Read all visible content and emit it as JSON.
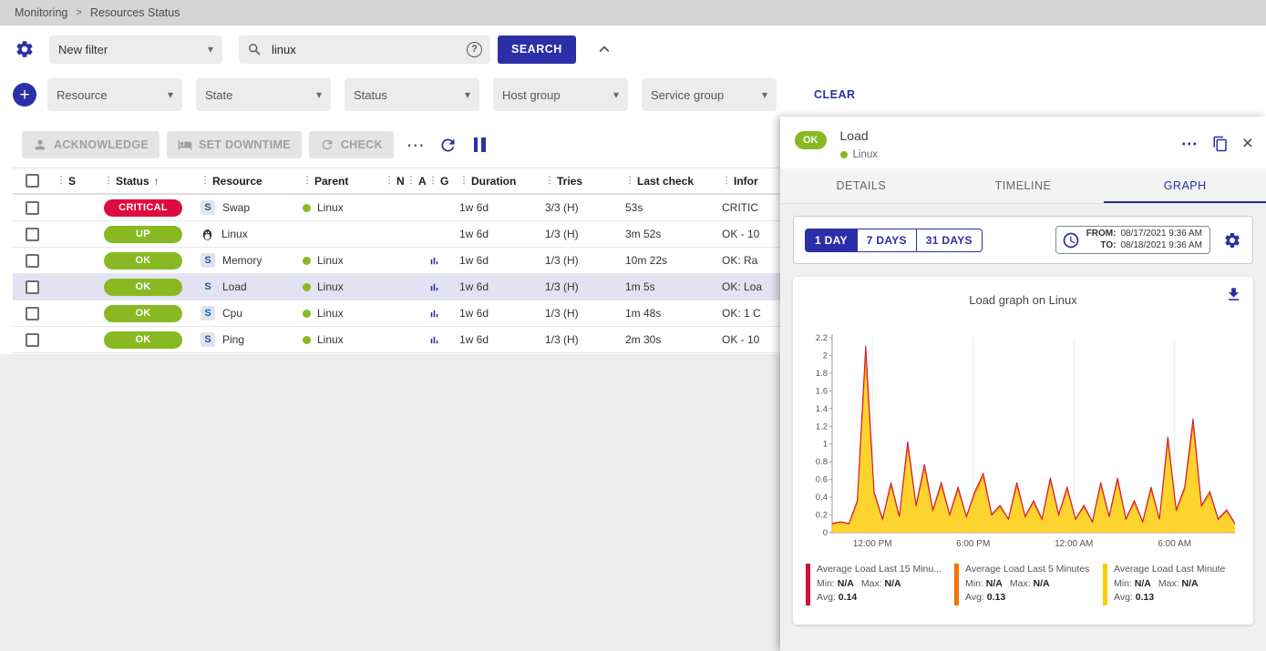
{
  "colors": {
    "primary": "#2a2fa8",
    "critical": "#e00b3d",
    "success": "#88b922",
    "selected_row": "#e2e2f2"
  },
  "icons": {
    "breadcrumb_separator": ">",
    "drag": "⋮",
    "sort_asc": "↑",
    "caret_down": "▾",
    "more_horizontal": "⋯",
    "close": "×",
    "help": "?",
    "plus": "+"
  },
  "breadcrumb": {
    "items": [
      "Monitoring",
      "Resources Status"
    ]
  },
  "filters": {
    "saved_filter": {
      "value": "New filter"
    },
    "search": {
      "value": "linux"
    },
    "search_button_label": "SEARCH",
    "criteria_selects": [
      "Resource",
      "State",
      "Status",
      "Host group",
      "Service group"
    ],
    "clear_label": "CLEAR"
  },
  "toolbar": {
    "acknowledge_label": "ACKNOWLEDGE",
    "set_downtime_label": "SET DOWNTIME",
    "check_label": "CHECK"
  },
  "table": {
    "headers": [
      "S",
      "Status",
      "Resource",
      "Parent",
      "N",
      "A",
      "G",
      "Duration",
      "Tries",
      "Last check",
      "Infor"
    ],
    "sorted_by": "Status",
    "rows": [
      {
        "severity": "critical",
        "status": "CRITICAL",
        "resource_icon": "S",
        "resource": "Swap",
        "parent": "Linux",
        "has_graph": false,
        "duration": "1w 6d",
        "tries": "3/3 (H)",
        "last_check": "53s",
        "info": "CRITIC",
        "selected": false
      },
      {
        "severity": "up",
        "status": "UP",
        "resource_icon": "penguin",
        "resource": "Linux",
        "parent": "",
        "has_graph": false,
        "duration": "1w 6d",
        "tries": "1/3 (H)",
        "last_check": "3m 52s",
        "info": "OK - 10",
        "selected": false
      },
      {
        "severity": "ok",
        "status": "OK",
        "resource_icon": "S",
        "resource": "Memory",
        "parent": "Linux",
        "has_graph": true,
        "duration": "1w 6d",
        "tries": "1/3 (H)",
        "last_check": "10m 22s",
        "info": "OK: Ra",
        "selected": false
      },
      {
        "severity": "ok",
        "status": "OK",
        "resource_icon": "S",
        "resource": "Load",
        "parent": "Linux",
        "has_graph": true,
        "duration": "1w 6d",
        "tries": "1/3 (H)",
        "last_check": "1m 5s",
        "info": "OK: Loa",
        "selected": true
      },
      {
        "severity": "ok",
        "status": "OK",
        "resource_icon": "S",
        "resource": "Cpu",
        "parent": "Linux",
        "has_graph": true,
        "duration": "1w 6d",
        "tries": "1/3 (H)",
        "last_check": "1m 48s",
        "info": "OK: 1 C",
        "selected": false
      },
      {
        "severity": "ok",
        "status": "OK",
        "resource_icon": "S",
        "resource": "Ping",
        "parent": "Linux",
        "has_graph": true,
        "duration": "1w 6d",
        "tries": "1/3 (H)",
        "last_check": "2m 30s",
        "info": "OK - 10",
        "selected": false
      }
    ]
  },
  "panel": {
    "status": "OK",
    "title": "Load",
    "subtitle": "Linux",
    "tabs": [
      "DETAILS",
      "TIMELINE",
      "GRAPH"
    ],
    "active_tab": "GRAPH",
    "ranges": [
      "1 DAY",
      "7 DAYS",
      "31 DAYS"
    ],
    "active_range": "1 DAY",
    "from_label": "FROM:",
    "from_value": "08/17/2021 9:36 AM",
    "to_label": "TO:",
    "to_value": "08/18/2021 9:36 AM",
    "graph_title": "Load graph on Linux",
    "legend_labels": {
      "min": "Min:",
      "max": "Max:",
      "avg": "Avg:"
    },
    "legend": [
      {
        "name": "Average Load Last 15 Minu...",
        "color": "#d0103a",
        "min": "N/A",
        "max": "N/A",
        "avg": "0.14"
      },
      {
        "name": "Average Load Last 5 Minutes",
        "color": "#f07300",
        "min": "N/A",
        "max": "N/A",
        "avg": "0.13"
      },
      {
        "name": "Average Load Last Minute",
        "color": "#fdcd0b",
        "min": "N/A",
        "max": "N/A",
        "avg": "0.13"
      }
    ]
  },
  "chart_data": {
    "type": "area",
    "title": "Load graph on Linux",
    "x_unit": "hours_from_start",
    "x_step_hours": 0.5,
    "x_range_hours": [
      0,
      24
    ],
    "x_ticks": [
      {
        "pos": 2.4,
        "label": "12:00 PM"
      },
      {
        "pos": 8.4,
        "label": "6:00 PM"
      },
      {
        "pos": 14.4,
        "label": "12:00 AM"
      },
      {
        "pos": 20.4,
        "label": "6:00 AM"
      }
    ],
    "ylim": [
      0,
      2.2
    ],
    "y_tick_step": 0.2,
    "grid": "vertical-only",
    "legend_position": "bottom",
    "base_values": [
      0.1,
      0.12,
      0.1,
      0.35,
      2.05,
      0.45,
      0.15,
      0.55,
      0.18,
      1.0,
      0.3,
      0.75,
      0.25,
      0.55,
      0.2,
      0.5,
      0.18,
      0.45,
      0.65,
      0.2,
      0.3,
      0.15,
      0.55,
      0.18,
      0.35,
      0.15,
      0.6,
      0.2,
      0.5,
      0.15,
      0.3,
      0.12,
      0.55,
      0.18,
      0.6,
      0.15,
      0.35,
      0.12,
      0.5,
      0.15,
      1.05,
      0.25,
      0.5,
      1.25,
      0.3,
      0.45,
      0.15,
      0.25,
      0.1
    ],
    "series": [
      {
        "name": "Average Load Last Minute",
        "color": "#fdcd0b",
        "scale": 1.0,
        "fill": true,
        "avg": 0.13
      },
      {
        "name": "Average Load Last 5 Minutes",
        "color": "#f07300",
        "scale": 0.97,
        "fill": false,
        "avg": 0.13
      },
      {
        "name": "Average Load Last 15 Minutes",
        "color": "#d0103a",
        "scale": 1.03,
        "fill": false,
        "avg": 0.14
      }
    ]
  }
}
